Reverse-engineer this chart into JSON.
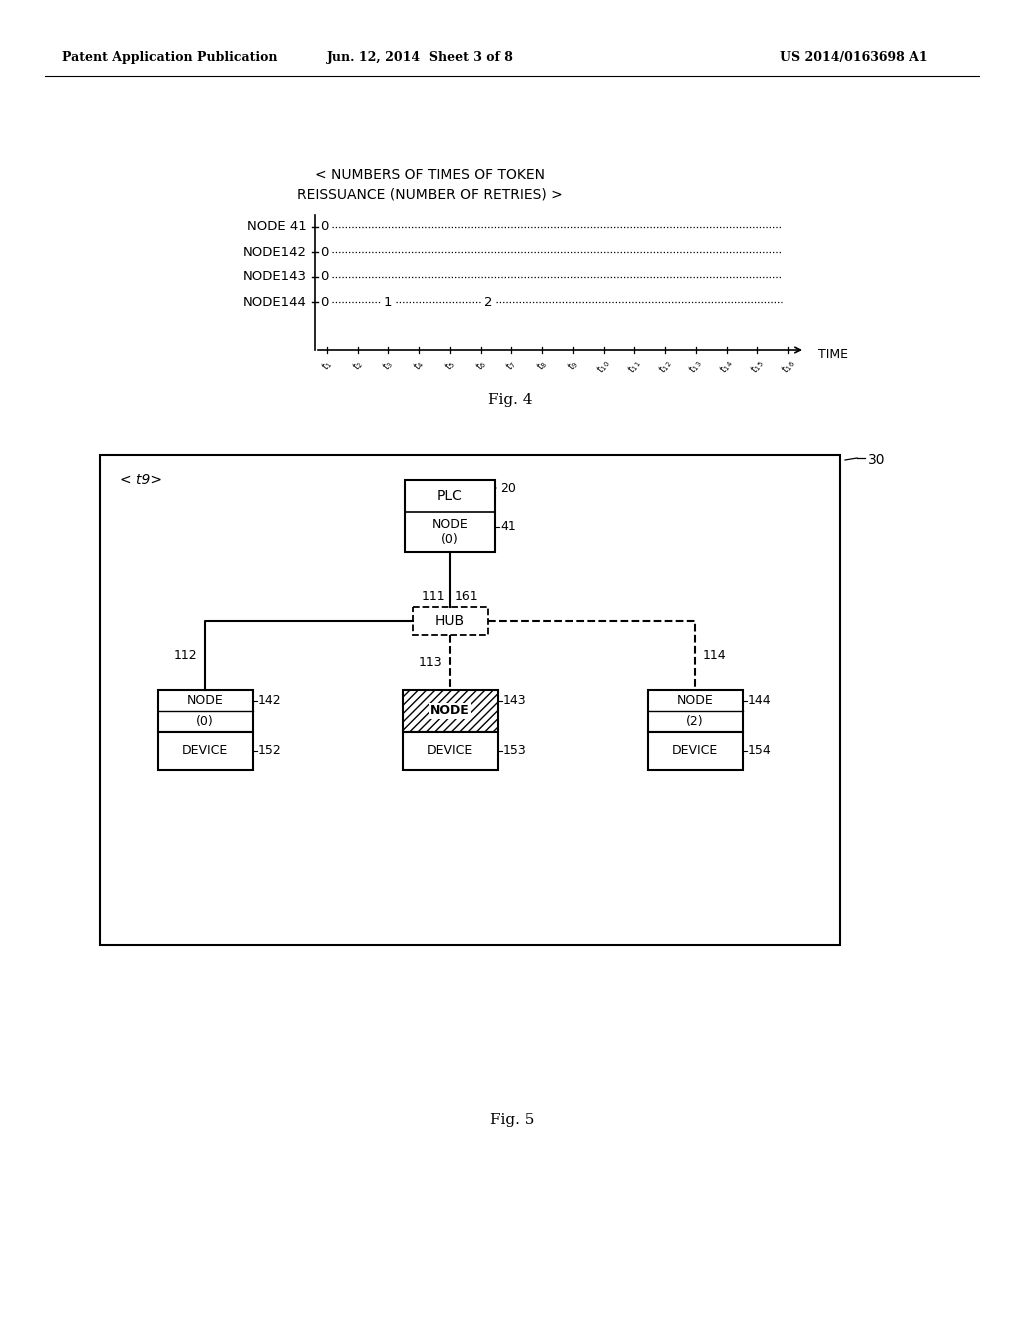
{
  "bg_color": "#ffffff",
  "header_left": "Patent Application Publication",
  "header_center": "Jun. 12, 2014  Sheet 3 of 8",
  "header_right": "US 2014/0163698 A1",
  "fig4_label": "Fig. 4",
  "fig5_label": "Fig. 5",
  "time_labels": [
    "t1",
    "t2",
    "t3",
    "t4",
    "t5",
    "t6",
    "t7",
    "t8",
    "t9",
    "t10",
    "t11",
    "t12",
    "t13",
    "t14",
    "t15",
    "t16"
  ]
}
